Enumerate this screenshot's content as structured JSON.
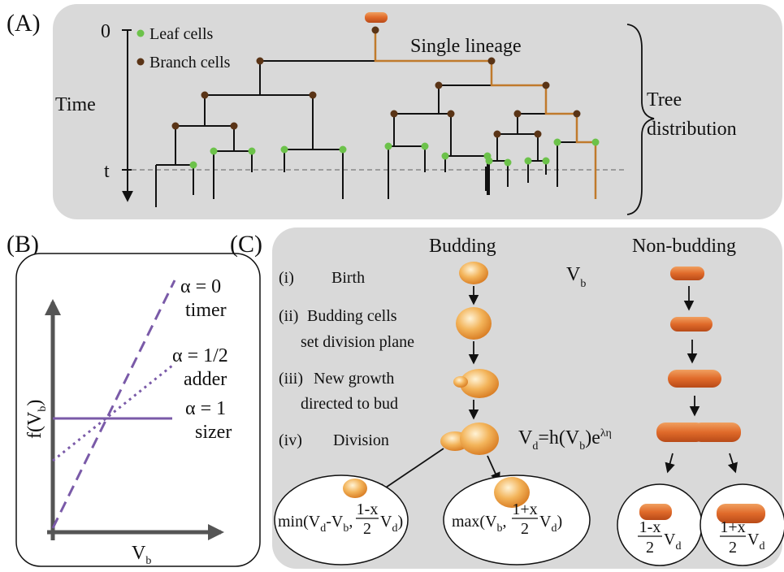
{
  "panel_a": {
    "label": "(A)",
    "time_label": "Time",
    "time_ticks": [
      "0",
      "t"
    ],
    "legend": [
      "Leaf cells",
      "Branch cells"
    ],
    "lineage_label": "Single lineage",
    "tree_label": [
      "Tree",
      "distribution"
    ]
  },
  "panel_b": {
    "label": "(B)",
    "y_label": [
      "f(V",
      "b",
      ")"
    ],
    "x_label": [
      "V",
      "b"
    ],
    "curves": [
      {
        "alpha": "α = 0",
        "name": "timer"
      },
      {
        "alpha": "α = 1/2",
        "name": "adder"
      },
      {
        "alpha": "α = 1",
        "name": "sizer"
      }
    ]
  },
  "panel_c": {
    "label": "(C)",
    "columns": [
      "Budding",
      "Non-budding"
    ],
    "steps": [
      {
        "num": "(i)",
        "text": [
          "Birth"
        ]
      },
      {
        "num": "(ii)",
        "text": [
          "Budding cells",
          "set division plane"
        ]
      },
      {
        "num": "(iii)",
        "text": [
          "New growth",
          "directed to bud"
        ]
      },
      {
        "num": "(iv)",
        "text": [
          "Division"
        ]
      }
    ],
    "birth_volume": [
      "V",
      "b"
    ],
    "division_formula": [
      "V",
      "d",
      "=h(V",
      "b",
      ")e",
      "λη"
    ],
    "daughters": [
      {
        "before": [
          "min(V",
          "d",
          "-V",
          "b",
          ","
        ],
        "numerator": "1-x",
        "denominator": "2",
        "after": [
          "V",
          "d",
          ")"
        ]
      },
      {
        "before": [
          "max(V",
          "b",
          ","
        ],
        "numerator": "1+x",
        "denominator": "2",
        "after": [
          "V",
          "d",
          ")"
        ]
      },
      {
        "before": [],
        "numerator": "1-x",
        "denominator": "2",
        "after": [
          "V",
          "d"
        ]
      },
      {
        "before": [],
        "numerator": "1+x",
        "denominator": "2",
        "after": [
          "V",
          "d"
        ]
      }
    ]
  }
}
